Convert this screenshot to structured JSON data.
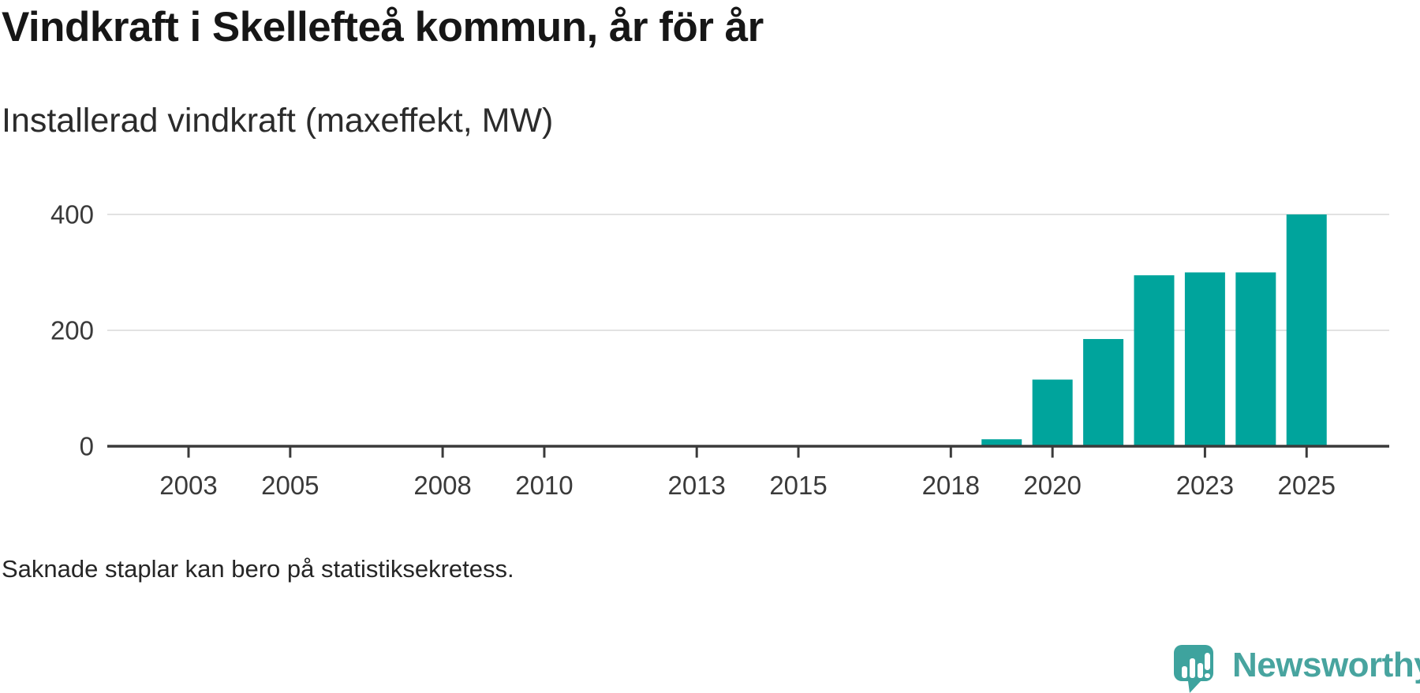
{
  "header": {
    "title": "Vindkraft i Skellefteå kommun, år för år",
    "subtitle": "Installerad vindkraft (maxeffekt, MW)"
  },
  "footnote": "Saknade staplar kan bero på statistiksekretess.",
  "branding": {
    "wordmark": "Newsworthy",
    "logo_icon": "speech-bubble-bar-chart-icon"
  },
  "colors": {
    "bar": "#00a49c",
    "axis": "#3a3a3a",
    "grid": "#e2e2e2",
    "tick_label": "#3a3a3a",
    "brand_text": "#48a49f",
    "brand_bubble": "#3ea39e"
  },
  "chart_data": {
    "type": "bar",
    "title": "Vindkraft i Skellefteå kommun, år för år",
    "ylabel": "Installerad vindkraft (maxeffekt, MW)",
    "unit": "MW",
    "x": [
      2019,
      2020,
      2021,
      2022,
      2023,
      2024,
      2025
    ],
    "values": [
      12,
      115,
      185,
      295,
      300,
      300,
      400
    ],
    "x_axis": {
      "domain": [
        2002,
        2026
      ],
      "tick_labels": [
        "2003",
        "2005",
        "2008",
        "2010",
        "2013",
        "2015",
        "2018",
        "2020",
        "2023",
        "2025"
      ]
    },
    "y_axis": {
      "ticks": [
        0,
        200,
        400
      ],
      "tick_labels": [
        "0",
        "200",
        "400"
      ],
      "range": [
        0,
        400
      ]
    },
    "grid": "horizontal",
    "legend": "none",
    "note": "Saknade staplar kan bero på statistiksekretess."
  }
}
